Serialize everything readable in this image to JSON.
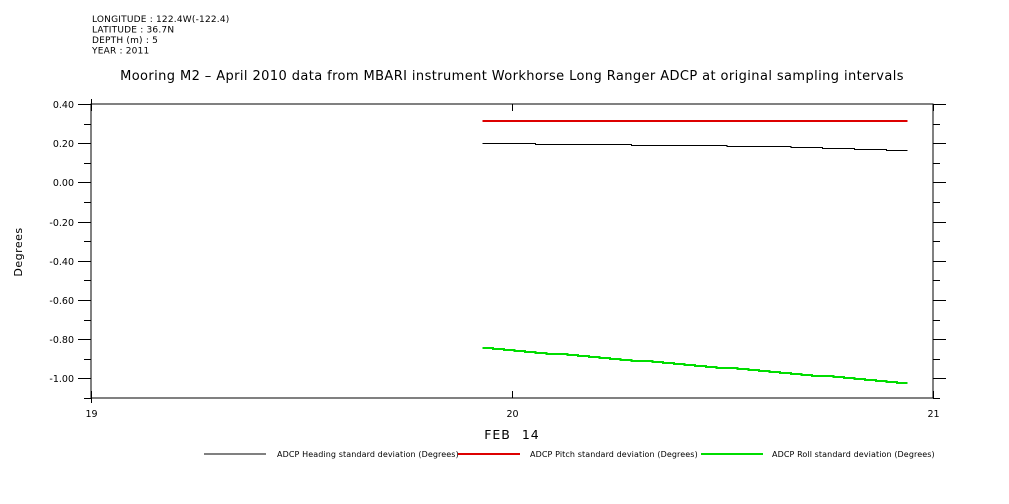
{
  "meta": {
    "lines": [
      "LONGITUDE : 122.4W(-122.4)",
      "LATITUDE : 36.7N",
      "DEPTH (m) : 5",
      "YEAR : 2011"
    ]
  },
  "chart_data": {
    "type": "line",
    "title": "Mooring M2 – April 2010 data from MBARI instrument Workhorse Long Ranger ADCP at original sampling intervals",
    "xlabel": "FEB 14",
    "ylabel": "Degrees",
    "xlim": [
      19,
      21
    ],
    "ylim": [
      -1.1,
      0.4
    ],
    "x_ticks": [
      19,
      20,
      21
    ],
    "x_tick_labels": [
      "19",
      "20",
      "21"
    ],
    "y_ticks_major": [
      0.4,
      0.2,
      0.0,
      -0.2,
      -0.4,
      -0.6,
      -0.8,
      -1.0
    ],
    "y_tick_labels": [
      "0.40",
      "0.20",
      "0.00",
      "-0.20",
      "-0.40",
      "-0.60",
      "-0.80",
      "-1.00"
    ],
    "y_ticks_minor": [
      0.3,
      0.1,
      -0.1,
      -0.3,
      -0.5,
      -0.7,
      -0.9,
      -1.1
    ],
    "grid": false,
    "legend_position": "bottom",
    "series": [
      {
        "id": "heading",
        "name": "ADCP Heading standard deviation (Degrees)",
        "color": "#000000",
        "width": 1,
        "x": [
          19.93,
          20.08,
          20.25,
          20.45,
          20.65,
          20.8,
          20.94
        ],
        "y": [
          0.202,
          0.198,
          0.194,
          0.19,
          0.184,
          0.174,
          0.165
        ]
      },
      {
        "id": "pitch",
        "name": "ADCP Pitch standard deviation (Degrees)",
        "color": "#dd0000",
        "width": 2,
        "x": [
          19.93,
          20.94
        ],
        "y": [
          0.315,
          0.315
        ]
      },
      {
        "id": "roll",
        "name": "ADCP Roll standard deviation (Degrees)",
        "color": "#00dd00",
        "width": 2,
        "x": [
          19.93,
          20.2,
          20.45,
          20.7,
          20.94
        ],
        "y": [
          -0.845,
          -0.892,
          -0.936,
          -0.981,
          -1.025
        ]
      }
    ]
  }
}
